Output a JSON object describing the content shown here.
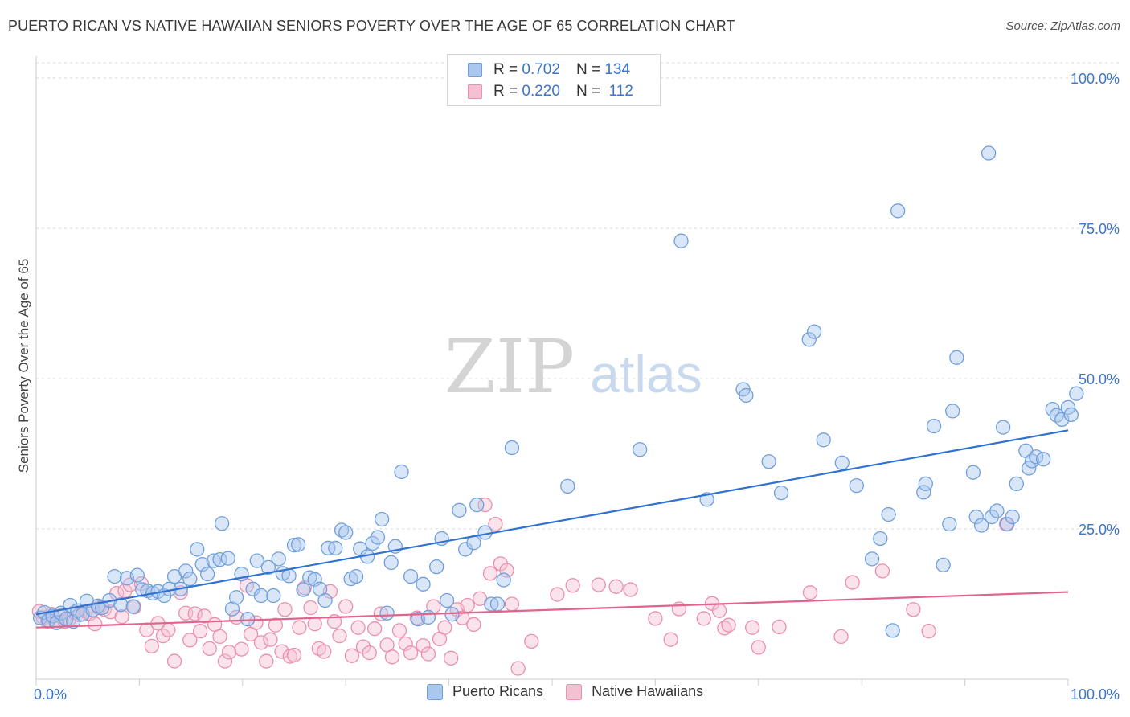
{
  "title": "PUERTO RICAN VS NATIVE HAWAIIAN SENIORS POVERTY OVER THE AGE OF 65 CORRELATION CHART",
  "source": "Source: ZipAtlas.com",
  "watermark": {
    "zip": "ZIP",
    "atlas": "atlas"
  },
  "legend_top": [
    {
      "r_label": "R =",
      "r_value": "0.702",
      "n_label": "N =",
      "n_value": "134"
    },
    {
      "r_label": "R =",
      "r_value": "0.220",
      "n_label": "N =",
      "n_value": "112"
    }
  ],
  "colors": {
    "blue_fill": "#aac8ee",
    "blue_stroke": "#6f9fdc",
    "blue_line": "#2f72d0",
    "pink_fill": "#f5c0d2",
    "pink_stroke": "#ea8fae",
    "pink_line": "#e0648c",
    "tick_label": "#3b76c8",
    "grid": "#d9d9d9",
    "watermark": "#d0d0d0"
  },
  "chart_data": {
    "type": "scatter",
    "title": "PUERTO RICAN VS NATIVE HAWAIIAN SENIORS POVERTY OVER THE AGE OF 65 CORRELATION CHART",
    "xlabel": "",
    "ylabel": "Seniors Poverty Over the Age of 65",
    "xlim": [
      0,
      100
    ],
    "ylim": [
      0,
      105
    ],
    "x_tick_labels": [
      "0.0%",
      "100.0%"
    ],
    "y_ticks": [
      25,
      50,
      75,
      100
    ],
    "y_tick_labels": [
      "25.0%",
      "50.0%",
      "75.0%",
      "100.0%"
    ],
    "grid": true,
    "legend_position": "bottom-center",
    "series": [
      {
        "name": "Puerto Ricans",
        "r": 0.702,
        "n": 134,
        "trend": {
          "x": [
            0,
            100
          ],
          "y": [
            10.8,
            41.4
          ]
        },
        "points": [
          [
            0.4,
            10.2
          ],
          [
            0.8,
            11.1
          ],
          [
            1.2,
            9.8
          ],
          [
            1.6,
            10.5
          ],
          [
            2.0,
            9.4
          ],
          [
            2.4,
            11.0
          ],
          [
            2.9,
            10.0
          ],
          [
            3.3,
            12.3
          ],
          [
            3.6,
            9.6
          ],
          [
            4.0,
            11.4
          ],
          [
            4.5,
            10.8
          ],
          [
            4.9,
            13.0
          ],
          [
            5.5,
            11.5
          ],
          [
            6.0,
            12.2
          ],
          [
            6.4,
            11.9
          ],
          [
            7.1,
            13.1
          ],
          [
            7.6,
            17.1
          ],
          [
            8.2,
            12.4
          ],
          [
            8.8,
            16.8
          ],
          [
            9.4,
            12.1
          ],
          [
            9.8,
            17.3
          ],
          [
            10.3,
            14.9
          ],
          [
            10.8,
            14.7
          ],
          [
            11.3,
            14.3
          ],
          [
            11.8,
            14.6
          ],
          [
            12.4,
            13.9
          ],
          [
            12.9,
            15.0
          ],
          [
            13.4,
            17.1
          ],
          [
            14.0,
            15.0
          ],
          [
            14.5,
            18.0
          ],
          [
            14.9,
            16.7
          ],
          [
            15.6,
            21.6
          ],
          [
            16.1,
            19.1
          ],
          [
            16.6,
            17.5
          ],
          [
            17.2,
            19.7
          ],
          [
            17.8,
            19.9
          ],
          [
            18.0,
            25.9
          ],
          [
            18.6,
            20.1
          ],
          [
            19.0,
            11.7
          ],
          [
            19.4,
            13.6
          ],
          [
            19.9,
            17.5
          ],
          [
            20.5,
            10.0
          ],
          [
            21.0,
            15.0
          ],
          [
            21.4,
            19.7
          ],
          [
            21.8,
            13.9
          ],
          [
            22.5,
            18.6
          ],
          [
            23.0,
            13.9
          ],
          [
            23.5,
            20.0
          ],
          [
            23.9,
            17.6
          ],
          [
            24.5,
            17.2
          ],
          [
            25.0,
            22.3
          ],
          [
            25.4,
            22.4
          ],
          [
            25.9,
            14.9
          ],
          [
            26.5,
            16.9
          ],
          [
            27.0,
            16.6
          ],
          [
            27.5,
            15.0
          ],
          [
            28.0,
            13.1
          ],
          [
            28.3,
            21.8
          ],
          [
            29.0,
            21.8
          ],
          [
            29.6,
            24.8
          ],
          [
            30.0,
            24.4
          ],
          [
            30.5,
            16.7
          ],
          [
            31.0,
            17.1
          ],
          [
            31.4,
            21.7
          ],
          [
            32.1,
            20.4
          ],
          [
            32.6,
            22.6
          ],
          [
            33.1,
            23.6
          ],
          [
            33.5,
            26.6
          ],
          [
            34.0,
            11.0
          ],
          [
            34.4,
            19.4
          ],
          [
            34.8,
            22.1
          ],
          [
            35.4,
            34.5
          ],
          [
            36.3,
            17.1
          ],
          [
            37.0,
            10.0
          ],
          [
            37.5,
            15.8
          ],
          [
            38.0,
            10.3
          ],
          [
            38.8,
            18.7
          ],
          [
            39.3,
            23.4
          ],
          [
            39.8,
            13.1
          ],
          [
            40.3,
            10.8
          ],
          [
            41.0,
            28.1
          ],
          [
            41.6,
            21.6
          ],
          [
            42.7,
            29.0
          ],
          [
            42.4,
            22.7
          ],
          [
            43.5,
            24.4
          ],
          [
            44.1,
            12.5
          ],
          [
            44.7,
            12.5
          ],
          [
            45.3,
            16.5
          ],
          [
            46.1,
            38.5
          ],
          [
            51.5,
            32.1
          ],
          [
            58.5,
            38.2
          ],
          [
            62.5,
            72.9
          ],
          [
            65.0,
            29.9
          ],
          [
            68.5,
            48.2
          ],
          [
            68.8,
            47.2
          ],
          [
            71.0,
            36.2
          ],
          [
            72.2,
            31.0
          ],
          [
            74.9,
            56.5
          ],
          [
            75.4,
            57.8
          ],
          [
            76.3,
            39.8
          ],
          [
            78.1,
            36.0
          ],
          [
            79.5,
            32.2
          ],
          [
            81.0,
            20.0
          ],
          [
            81.8,
            23.4
          ],
          [
            82.6,
            27.4
          ],
          [
            83.0,
            8.1
          ],
          [
            83.5,
            77.9
          ],
          [
            86.0,
            31.1
          ],
          [
            86.2,
            32.5
          ],
          [
            87.0,
            42.1
          ],
          [
            87.9,
            19.0
          ],
          [
            88.5,
            25.8
          ],
          [
            88.8,
            44.6
          ],
          [
            89.2,
            53.5
          ],
          [
            90.8,
            34.4
          ],
          [
            91.1,
            27.0
          ],
          [
            91.6,
            25.6
          ],
          [
            92.3,
            87.5
          ],
          [
            92.6,
            27.0
          ],
          [
            93.1,
            28.0
          ],
          [
            93.7,
            41.9
          ],
          [
            94.1,
            25.8
          ],
          [
            94.6,
            27.0
          ],
          [
            95.0,
            32.5
          ],
          [
            95.9,
            38.0
          ],
          [
            96.2,
            35.1
          ],
          [
            96.5,
            36.3
          ],
          [
            96.9,
            37.0
          ],
          [
            97.6,
            36.6
          ],
          [
            98.5,
            44.9
          ],
          [
            98.9,
            43.9
          ],
          [
            99.4,
            43.2
          ],
          [
            100.0,
            45.2
          ],
          [
            100.3,
            44.0
          ],
          [
            100.8,
            47.5
          ]
        ]
      },
      {
        "name": "Native Hawaiians",
        "r": 0.22,
        "n": 112,
        "trend": {
          "x": [
            0,
            100
          ],
          "y": [
            8.6,
            14.5
          ]
        },
        "points": [
          [
            0.3,
            11.3
          ],
          [
            0.7,
            10.2
          ],
          [
            1.1,
            9.6
          ],
          [
            1.5,
            10.8
          ],
          [
            1.9,
            9.4
          ],
          [
            2.3,
            10.5
          ],
          [
            2.8,
            9.6
          ],
          [
            3.2,
            10.0
          ],
          [
            3.7,
            11.1
          ],
          [
            4.2,
            10.7
          ],
          [
            4.8,
            11.3
          ],
          [
            5.2,
            10.9
          ],
          [
            5.7,
            9.2
          ],
          [
            6.1,
            11.9
          ],
          [
            6.6,
            11.6
          ],
          [
            7.2,
            11.2
          ],
          [
            7.8,
            14.3
          ],
          [
            8.3,
            10.4
          ],
          [
            8.6,
            14.7
          ],
          [
            9.1,
            15.7
          ],
          [
            9.5,
            12.0
          ],
          [
            10.2,
            15.9
          ],
          [
            10.7,
            8.2
          ],
          [
            11.2,
            5.5
          ],
          [
            11.8,
            9.3
          ],
          [
            12.3,
            7.2
          ],
          [
            12.8,
            8.2
          ],
          [
            13.4,
            3.0
          ],
          [
            14.0,
            14.4
          ],
          [
            14.5,
            11.0
          ],
          [
            14.9,
            6.5
          ],
          [
            15.4,
            10.9
          ],
          [
            15.9,
            8.0
          ],
          [
            16.3,
            10.5
          ],
          [
            16.8,
            5.1
          ],
          [
            17.3,
            9.1
          ],
          [
            17.8,
            7.1
          ],
          [
            18.3,
            3.0
          ],
          [
            18.7,
            4.5
          ],
          [
            19.4,
            10.3
          ],
          [
            19.9,
            5.0
          ],
          [
            20.4,
            15.6
          ],
          [
            20.8,
            7.5
          ],
          [
            21.3,
            9.4
          ],
          [
            21.8,
            6.1
          ],
          [
            22.3,
            3.0
          ],
          [
            22.7,
            6.6
          ],
          [
            23.2,
            9.0
          ],
          [
            23.8,
            4.6
          ],
          [
            24.1,
            11.6
          ],
          [
            24.6,
            3.8
          ],
          [
            25.0,
            4.0
          ],
          [
            25.5,
            8.6
          ],
          [
            26.0,
            15.2
          ],
          [
            26.6,
            11.9
          ],
          [
            27.0,
            9.2
          ],
          [
            27.4,
            5.1
          ],
          [
            27.9,
            4.6
          ],
          [
            28.5,
            14.6
          ],
          [
            28.9,
            9.6
          ],
          [
            29.4,
            7.2
          ],
          [
            30.0,
            12.1
          ],
          [
            30.6,
            3.9
          ],
          [
            31.2,
            8.6
          ],
          [
            31.7,
            5.4
          ],
          [
            32.3,
            4.4
          ],
          [
            32.8,
            8.4
          ],
          [
            33.4,
            10.9
          ],
          [
            34.0,
            5.7
          ],
          [
            34.5,
            3.7
          ],
          [
            35.2,
            8.1
          ],
          [
            35.8,
            5.9
          ],
          [
            36.3,
            4.4
          ],
          [
            36.9,
            10.2
          ],
          [
            37.5,
            5.6
          ],
          [
            38.0,
            4.2
          ],
          [
            38.5,
            12.1
          ],
          [
            39.1,
            6.7
          ],
          [
            39.6,
            8.6
          ],
          [
            40.2,
            3.5
          ],
          [
            40.8,
            11.6
          ],
          [
            41.3,
            10.2
          ],
          [
            41.8,
            12.3
          ],
          [
            42.4,
            9.1
          ],
          [
            43.0,
            13.4
          ],
          [
            43.5,
            29.0
          ],
          [
            44.0,
            17.6
          ],
          [
            44.5,
            25.8
          ],
          [
            45.0,
            19.2
          ],
          [
            45.6,
            18.1
          ],
          [
            46.1,
            12.5
          ],
          [
            46.7,
            1.8
          ],
          [
            48.0,
            6.3
          ],
          [
            50.5,
            14.1
          ],
          [
            52.0,
            15.6
          ],
          [
            54.5,
            15.7
          ],
          [
            56.2,
            15.4
          ],
          [
            57.6,
            14.9
          ],
          [
            60.0,
            10.1
          ],
          [
            61.5,
            6.6
          ],
          [
            62.3,
            11.7
          ],
          [
            64.7,
            10.1
          ],
          [
            65.5,
            12.6
          ],
          [
            66.2,
            11.4
          ],
          [
            66.7,
            8.5
          ],
          [
            67.1,
            9.0
          ],
          [
            69.4,
            8.6
          ],
          [
            70.0,
            5.3
          ],
          [
            72.0,
            8.7
          ],
          [
            75.0,
            14.4
          ],
          [
            78.0,
            7.1
          ],
          [
            79.1,
            16.1
          ],
          [
            82.0,
            18.0
          ],
          [
            85.0,
            11.6
          ],
          [
            86.5,
            8.0
          ],
          [
            94.0,
            25.8
          ]
        ]
      }
    ]
  },
  "legend_bottom": [
    {
      "label": "Puerto Ricans"
    },
    {
      "label": "Native Hawaiians"
    }
  ]
}
